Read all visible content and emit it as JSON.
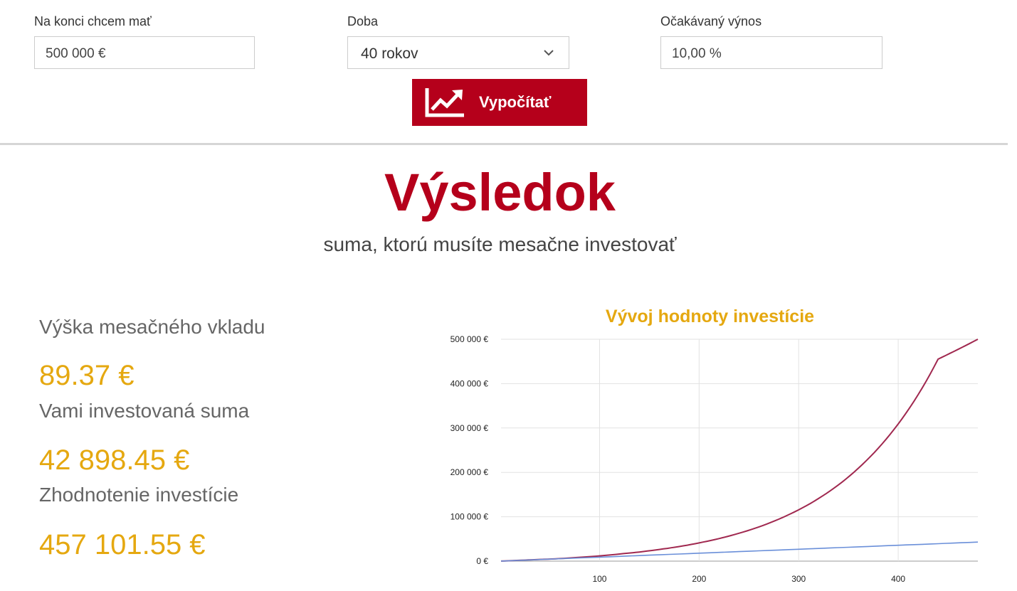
{
  "form": {
    "target": {
      "label": "Na konci chcem mať",
      "value": "500 000 €"
    },
    "period": {
      "label": "Doba",
      "value": "40 rokov"
    },
    "yield": {
      "label": "Očakávaný výnos",
      "value": "10,00 %"
    },
    "calculate_label": "Vypočítať"
  },
  "result": {
    "title": "Výsledok",
    "subtitle": "suma, ktorú musíte mesačne investovať",
    "stats": [
      {
        "label": "Výška mesačného vkladu",
        "value": "89.37 €"
      },
      {
        "label": "Vami investovaná suma",
        "value": "42 898.45 €"
      },
      {
        "label": "Zhodnotenie investície",
        "value": "457 101.55 €"
      }
    ]
  },
  "colors": {
    "accent": "#b5001b",
    "gold": "#e5a810",
    "series_value": "#a0284f",
    "series_invested": "#6a8fd9"
  },
  "icons": {
    "calculate": "chart-trend-up-icon",
    "dropdown": "chevron-down-icon"
  },
  "chart_data": {
    "type": "line",
    "title": "Vývoj hodnoty investície",
    "xlabel": "",
    "ylabel": "",
    "xlim": [
      1,
      480
    ],
    "ylim": [
      0,
      500000
    ],
    "x_ticks": [
      100,
      200,
      300,
      400
    ],
    "y_ticks": [
      "0 €",
      "100 000 €",
      "200 000 €",
      "300 000 €",
      "400 000 €",
      "500 000 €"
    ],
    "y_tick_values": [
      0,
      100000,
      200000,
      300000,
      400000,
      500000
    ],
    "grid": true,
    "legend": "none",
    "series": [
      {
        "x": [
          1,
          40,
          80,
          120,
          160,
          200,
          240,
          280,
          320,
          360,
          400,
          440,
          480
        ],
        "values": [
          89,
          3800,
          8700,
          16100,
          26300,
          41100,
          62800,
          94600,
          141200,
          209400,
          309200,
          455200,
          500000
        ]
      },
      {
        "x": [
          1,
          100,
          200,
          300,
          400,
          480
        ],
        "values": [
          89,
          8940,
          17870,
          26810,
          35750,
          42898
        ]
      }
    ]
  }
}
